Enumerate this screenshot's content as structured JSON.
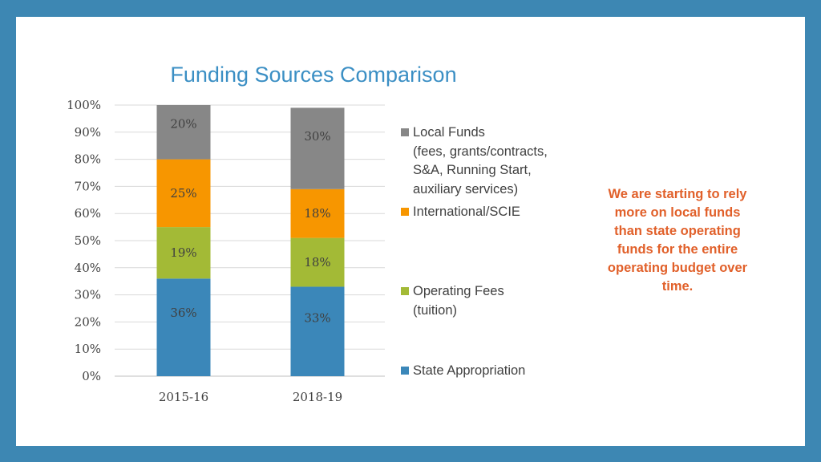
{
  "chart_data": {
    "type": "bar",
    "stacked": true,
    "title": "Funding Sources Comparison",
    "categories": [
      "2015-16",
      "2018-19"
    ],
    "series": [
      {
        "name": "State Appropriation",
        "values": [
          36,
          33
        ],
        "labels": [
          "36%",
          "33%"
        ],
        "color": "#3b87b9"
      },
      {
        "name": "Operating Fees (tuition)",
        "values": [
          19,
          18
        ],
        "labels": [
          "19%",
          "18%"
        ],
        "color": "#a3ba36"
      },
      {
        "name": "International/SCIE",
        "values": [
          25,
          18
        ],
        "labels": [
          "25%",
          "18%"
        ],
        "color": "#f79600"
      },
      {
        "name": "Local Funds (fees, grants/contracts, S&A, Running Start, auxiliary services)",
        "values": [
          20,
          30
        ],
        "labels": [
          "20%",
          "30%"
        ],
        "color": "#878787"
      }
    ],
    "ylim": [
      0,
      100
    ],
    "yticks": [
      "0%",
      "10%",
      "20%",
      "30%",
      "40%",
      "50%",
      "60%",
      "70%",
      "80%",
      "90%",
      "100%"
    ],
    "grid": true,
    "legend_position": "right"
  },
  "legend": {
    "local_funds": {
      "line1": "Local Funds",
      "line2": "(fees, grants/contracts,",
      "line3": "S&A, Running Start,",
      "line4": "auxiliary services)"
    },
    "international": {
      "line1": "International/SCIE"
    },
    "operating_fees": {
      "line1": "Operating Fees",
      "line2": "(tuition)"
    },
    "state": {
      "line1": "State Appropriation"
    }
  },
  "callout": "We are starting to rely more on local funds than state operating funds for the entire operating budget over time."
}
